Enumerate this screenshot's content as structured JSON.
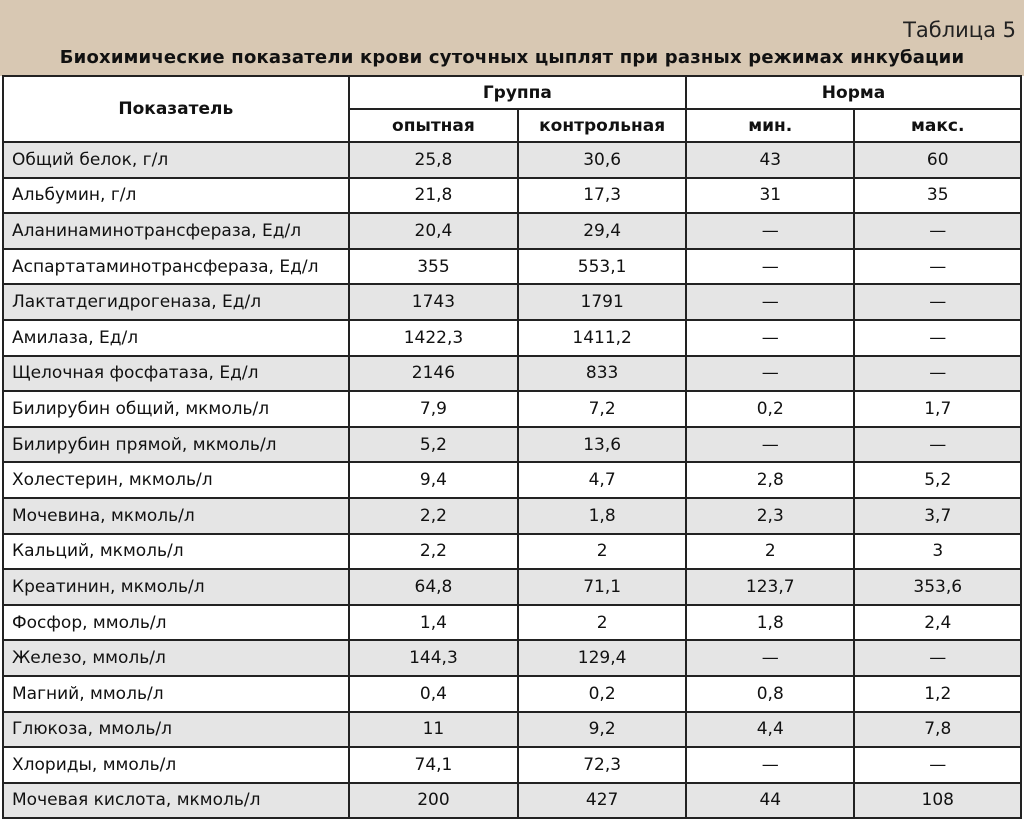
{
  "table_number": "Таблица 5",
  "title": "Биохимические показатели крови суточных цыплят при разных режимах инкубации",
  "headers": {
    "indicator": "Показатель",
    "group": "Группа",
    "experimental": "опытная",
    "control": "контрольная",
    "norm": "Норма",
    "min": "мин.",
    "max": "макс."
  },
  "rows": [
    [
      "Общий белок, г/л",
      "25,8",
      "30,6",
      "43",
      "60"
    ],
    [
      "Альбумин, г/л",
      "21,8",
      "17,3",
      "31",
      "35"
    ],
    [
      "Аланинаминотрансфераза, Ед/л",
      "20,4",
      "29,4",
      "—",
      "—"
    ],
    [
      "Аспартатаминотрансфераза, Ед/л",
      "355",
      "553,1",
      "—",
      "—"
    ],
    [
      "Лактатдегидрогеназа, Ед/л",
      "1743",
      "1791",
      "—",
      "—"
    ],
    [
      "Амилаза, Ед/л",
      "1422,3",
      "1411,2",
      "—",
      "—"
    ],
    [
      "Щелочная фосфатаза, Ед/л",
      "2146",
      "833",
      "—",
      "—"
    ],
    [
      "Билирубин общий, мкмоль/л",
      "7,9",
      "7,2",
      "0,2",
      "1,7"
    ],
    [
      "Билирубин прямой, мкмоль/л",
      "5,2",
      "13,6",
      "—",
      "—"
    ],
    [
      "Холестерин, мкмоль/л",
      "9,4",
      "4,7",
      "2,8",
      "5,2"
    ],
    [
      "Мочевина, мкмоль/л",
      "2,2",
      "1,8",
      "2,3",
      "3,7"
    ],
    [
      "Кальций, мкмоль/л",
      "2,2",
      "2",
      "2",
      "3"
    ],
    [
      "Креатинин, мкмоль/л",
      "64,8",
      "71,1",
      "123,7",
      "353,6"
    ],
    [
      "Фосфор, ммоль/л",
      "1,4",
      "2",
      "1,8",
      "2,4"
    ],
    [
      "Железо, ммоль/л",
      "144,3",
      "129,4",
      "—",
      "—"
    ],
    [
      "Магний, ммоль/л",
      "0,4",
      "0,2",
      "0,8",
      "1,2"
    ],
    [
      "Глюкоза, ммоль/л",
      "11",
      "9,2",
      "4,4",
      "7,8"
    ],
    [
      "Хлориды, ммоль/л",
      "74,1",
      "72,3",
      "—",
      "—"
    ],
    [
      "Мочевая кислота, мкмоль/л",
      "200",
      "427",
      "44",
      "108"
    ]
  ]
}
